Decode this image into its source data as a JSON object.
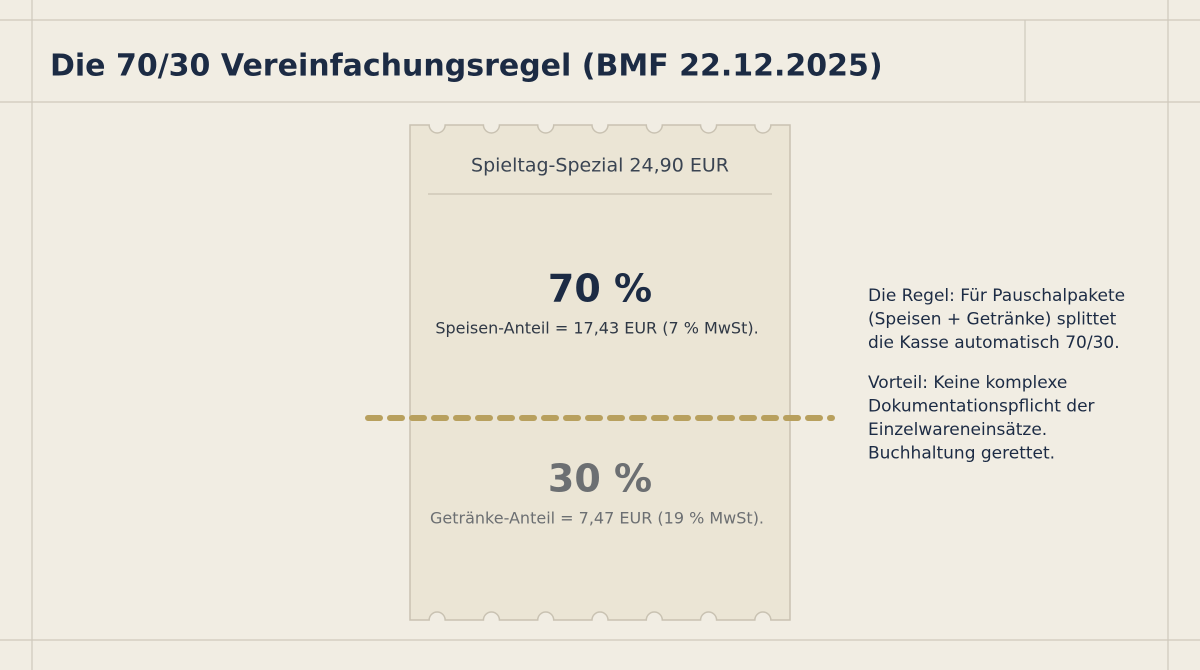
{
  "header": {
    "title": "Die 70/30 Vereinfachungsregel (BMF 22.12.2025)"
  },
  "receipt": {
    "title": "Spieltag-Spezial 24,90 EUR",
    "upper": {
      "percent": "70 %",
      "detail": "Speisen-Anteil = 17,43 EUR (7 % MwSt)."
    },
    "lower": {
      "percent": "30 %",
      "detail": "Getränke-Anteil = 7,47 EUR (19 % MwSt)."
    }
  },
  "notes": {
    "rule": [
      "Die Regel: Für Pauschalpakete",
      "(Speisen + Getränke) splittet",
      "die Kasse automatisch 70/30."
    ],
    "advantage": [
      "Vorteil: Keine komplexe",
      "Dokumentationspflicht der",
      "Einzelwareneinsätze.",
      "Buchhaltung gerettet."
    ]
  }
}
